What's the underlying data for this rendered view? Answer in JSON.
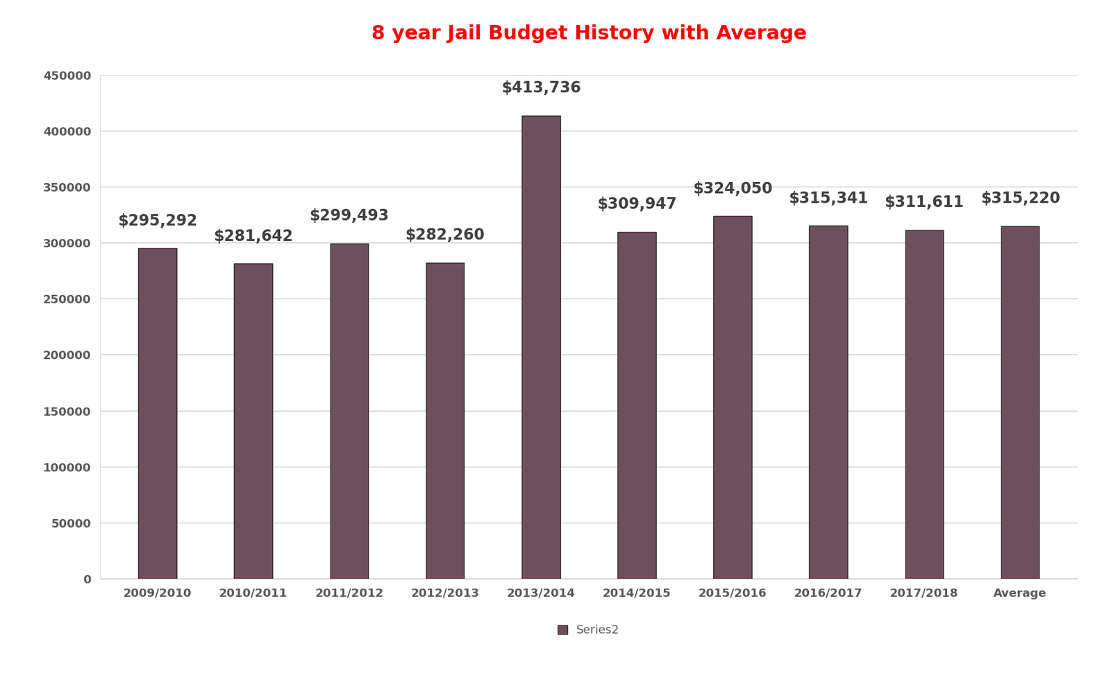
{
  "chart_data": {
    "type": "bar",
    "title": "8 year Jail Budget History with Average",
    "categories": [
      "2009/2010",
      "2010/2011",
      "2011/2012",
      "2012/2013",
      "2013/2014",
      "2014/2015",
      "2015/2016",
      "2016/2017",
      "2017/2018",
      "Average"
    ],
    "series": [
      {
        "name": "Series2",
        "color": "#6e4f5c",
        "values": [
          295292,
          281642,
          299493,
          282260,
          413736,
          309947,
          324050,
          315341,
          311611,
          315220
        ],
        "value_labels": [
          "$295,292",
          "$281,642",
          "$299,493",
          "$282,260",
          "$413,736",
          "$309,947",
          "$324,050",
          "$315,341",
          "$311,611",
          "$315,220"
        ]
      }
    ],
    "ylim": [
      0,
      450000
    ],
    "yticks": [
      0,
      50000,
      100000,
      150000,
      200000,
      250000,
      300000,
      350000,
      400000,
      450000
    ],
    "grid": true,
    "data_labels": true,
    "legend": "bottom"
  }
}
